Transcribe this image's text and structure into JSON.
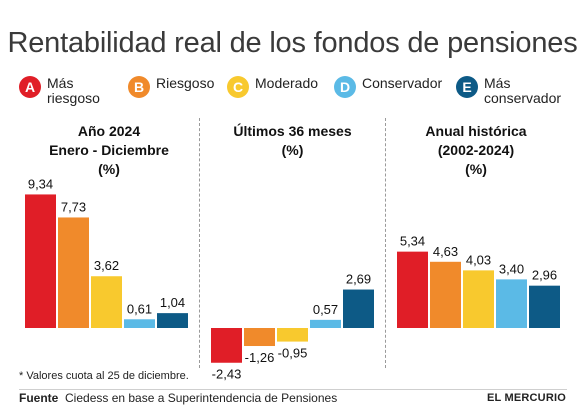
{
  "title": "Rentabilidad real de los fondos de pensiones",
  "legend": [
    {
      "letter": "A",
      "label_line1": "Más",
      "label_line2": "riesgoso",
      "color": "#e01e27"
    },
    {
      "letter": "B",
      "label_line1": "Riesgoso",
      "label_line2": "",
      "color": "#f08a2b"
    },
    {
      "letter": "C",
      "label_line1": "Moderado",
      "label_line2": "",
      "color": "#f8c92e"
    },
    {
      "letter": "D",
      "label_line1": "Conservador",
      "label_line2": "",
      "color": "#5bbae6"
    },
    {
      "letter": "E",
      "label_line1": "Más",
      "label_line2": "conservador",
      "color": "#0d5a86"
    }
  ],
  "chart_data": [
    {
      "type": "bar",
      "title": "Año 2024",
      "subtitle": "Enero - Diciembre",
      "unit": "(%)",
      "categories": [
        "A",
        "B",
        "C",
        "D",
        "E"
      ],
      "values": [
        9.34,
        7.73,
        3.62,
        0.61,
        1.04
      ],
      "labels": [
        "9,34",
        "7,73",
        "3,62",
        "0,61",
        "1,04"
      ]
    },
    {
      "type": "bar",
      "title": "Últimos 36 meses",
      "subtitle": "",
      "unit": "(%)",
      "categories": [
        "A",
        "B",
        "C",
        "D",
        "E"
      ],
      "values": [
        -2.43,
        -1.26,
        -0.95,
        0.57,
        2.69
      ],
      "labels": [
        "-2,43",
        "-1,26",
        "-0,95",
        "0,57",
        "2,69"
      ]
    },
    {
      "type": "bar",
      "title": "Anual histórica",
      "subtitle": "(2002-2024)",
      "unit": "(%)",
      "categories": [
        "A",
        "B",
        "C",
        "D",
        "E"
      ],
      "values": [
        5.34,
        4.63,
        4.03,
        3.4,
        2.96
      ],
      "labels": [
        "5,34",
        "4,63",
        "4,03",
        "3,40",
        "2,96"
      ]
    }
  ],
  "footnote": "* Valores cuota al 25 de diciembre.",
  "source_label": "Fuente",
  "source_text": "Ciedess en base a Superintendencia de Pensiones",
  "brand": "EL MERCURIO"
}
